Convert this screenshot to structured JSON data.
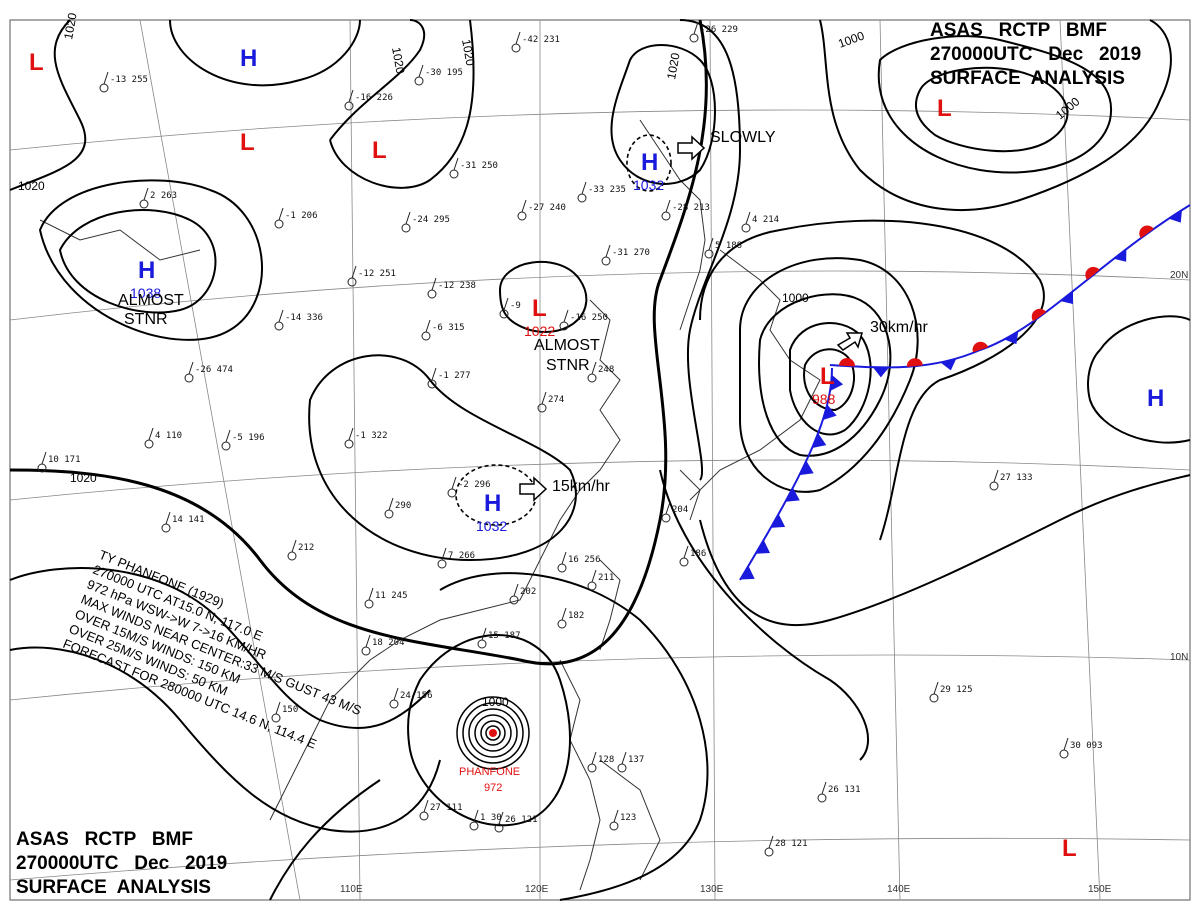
{
  "map": {
    "agency_line": "ASAS   RCTP   BMF",
    "time_line": "270000UTC   Dec   2019",
    "analysis_line": "SURFACE  ANALYSIS"
  },
  "colors": {
    "high": "#1a1adc",
    "low": "#e01010",
    "cold_front": "#1a1adc",
    "warm_front": "#e01010"
  },
  "pressure_centers": [
    {
      "type": "H",
      "id": "h-nw-top",
      "pressure": ""
    },
    {
      "type": "H",
      "id": "h-west",
      "pressure": "1038"
    },
    {
      "type": "H",
      "id": "h-north",
      "pressure": "1032"
    },
    {
      "type": "H",
      "id": "h-china",
      "pressure": "1032"
    },
    {
      "type": "H",
      "id": "h-east",
      "pressure": ""
    },
    {
      "type": "L",
      "id": "l-nw-corner",
      "pressure": ""
    },
    {
      "type": "L",
      "id": "l-mongolia",
      "pressure": ""
    },
    {
      "type": "L",
      "id": "l-north-mid",
      "pressure": ""
    },
    {
      "type": "L",
      "id": "l-central",
      "pressure": "1022"
    },
    {
      "type": "L",
      "id": "l-japan",
      "pressure": "988"
    },
    {
      "type": "L",
      "id": "l-ne",
      "pressure": ""
    },
    {
      "type": "L",
      "id": "l-se",
      "pressure": ""
    }
  ],
  "motion_labels": {
    "slowly": "SLOWLY",
    "japan_low": "30km/hr",
    "china_high": "15km/hr",
    "stationary_1": "ALMOST",
    "stationary_2": "STNR"
  },
  "typhoon": {
    "name": "PHANFONE",
    "pressure": "972",
    "bulletin": [
      "TY  PHANFONE  (1929)",
      "270000 UTC  AT15.0 N, 117.0 E",
      "972 hPa  WSW->W  7->16 KM/HR",
      "MAX WINDS NEAR CENTER:33 M/S GUST 43 M/S",
      "OVER 15M/S WINDS: 150 KM",
      "OVER 25M/S WINDS: 50 KM",
      "FORECAST FOR 280000 UTC 14.6 N, 114.4 E"
    ]
  },
  "isobar_labels": [
    "1020",
    "1020",
    "1020",
    "1020",
    "1020",
    "1000",
    "1000",
    "1000",
    "1000",
    "1020"
  ],
  "longitudes": [
    "110E",
    "120E",
    "130E",
    "140E",
    "150E"
  ],
  "latitudes": [
    "20N",
    "10N"
  ],
  "station_obs": [
    "-13 255",
    "-30 195",
    "-42 231",
    "-26 229",
    "2 263",
    "-16 226",
    "-31 250",
    "-33 235",
    "-28 213",
    "-1 206",
    "-24 295",
    "-27 240",
    "-31 270",
    "-12 251",
    "-12 238",
    "-9",
    "-14 336",
    "-6 315",
    "-16 250",
    "-26 474",
    "-1 277",
    "-5 196",
    "-1 322",
    "248",
    "274",
    "4 110",
    "10 171",
    "-2 296",
    "290",
    "14 141",
    "212",
    "7 266",
    "16 256",
    "211",
    "204",
    "186",
    "11 245",
    "202",
    "182",
    "18 204",
    "15 187",
    "24 156",
    "150",
    "27 111",
    "26 121",
    "28 121",
    "29 125",
    "30 093",
    "27 133",
    "26 131",
    "123",
    "137",
    "128",
    "1 30",
    "5 188",
    "4 214"
  ]
}
